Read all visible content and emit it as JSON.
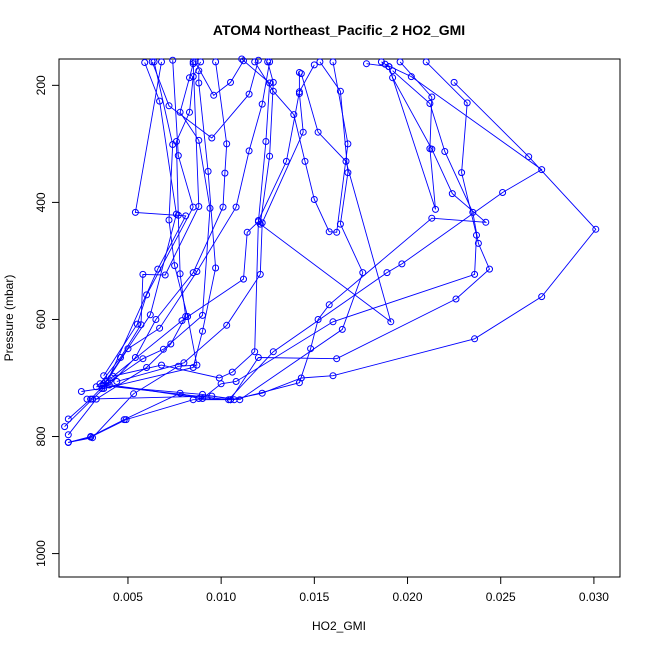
{
  "chart_data": {
    "type": "line",
    "title": "ATOM4 Northeast_Pacific_2 HO2_GMI",
    "xlabel": "HO2_GMI",
    "ylabel": "Pressure (mbar)",
    "xlim": [
      0.0013,
      0.0314
    ],
    "ylim": [
      1040,
      155
    ],
    "y_reversed": true,
    "x_ticks": [
      0.005,
      0.01,
      0.015,
      0.02,
      0.025,
      0.03
    ],
    "x_tick_labels": [
      "0.005",
      "0.010",
      "0.015",
      "0.020",
      "0.025",
      "0.030"
    ],
    "y_ticks": [
      200,
      400,
      600,
      800,
      1000
    ],
    "y_tick_labels": [
      "200",
      "400",
      "600",
      "800",
      "1000"
    ],
    "grid": false,
    "legend": "none",
    "color": "#0000ff",
    "marker": "open-circle",
    "series": [
      {
        "points": [
          [
            0.0018,
            810
          ],
          [
            0.003,
            800
          ],
          [
            0.0048,
            771
          ],
          [
            0.0078,
            726
          ],
          [
            0.0088,
            735
          ],
          [
            0.0105,
            737
          ],
          [
            0.0122,
            726
          ],
          [
            0.0143,
            700
          ],
          [
            0.016,
            696
          ],
          [
            0.0236,
            633
          ],
          [
            0.0272,
            561
          ],
          [
            0.0301,
            446
          ],
          [
            0.0265,
            322
          ],
          [
            0.0225,
            195
          ]
        ]
      },
      {
        "points": [
          [
            0.0018,
            810
          ],
          [
            0.003,
            801
          ],
          [
            0.0049,
            771
          ],
          [
            0.0085,
            737
          ],
          [
            0.0105,
            737
          ],
          [
            0.012,
            665
          ],
          [
            0.0162,
            667
          ],
          [
            0.0226,
            565
          ],
          [
            0.0244,
            514
          ],
          [
            0.0238,
            470
          ],
          [
            0.0235,
            417
          ],
          [
            0.022,
            313
          ],
          [
            0.0212,
            231
          ],
          [
            0.0192,
            175
          ]
        ]
      },
      {
        "points": [
          [
            0.0018,
            810
          ],
          [
            0.0031,
            802
          ],
          [
            0.0053,
            727
          ],
          [
            0.0077,
            680
          ],
          [
            0.0087,
            678
          ],
          [
            0.0082,
            595
          ],
          [
            0.0075,
            508
          ],
          [
            0.0072,
            430
          ],
          [
            0.0074,
            301
          ],
          [
            0.0064,
            160
          ]
        ]
      },
      {
        "points": [
          [
            0.0018,
            797
          ],
          [
            0.0033,
            736
          ],
          [
            0.006,
            682
          ],
          [
            0.0073,
            642
          ],
          [
            0.0081,
            595
          ],
          [
            0.0078,
            522
          ],
          [
            0.0077,
            422
          ],
          [
            0.0076,
            296
          ],
          [
            0.0083,
            246
          ],
          [
            0.0085,
            185
          ],
          [
            0.0089,
            160
          ]
        ]
      },
      {
        "points": [
          [
            0.0016,
            783
          ],
          [
            0.0031,
            736
          ],
          [
            0.0037,
            718
          ],
          [
            0.0085,
            682
          ],
          [
            0.009,
            620
          ],
          [
            0.0097,
            512
          ],
          [
            0.0093,
            347
          ],
          [
            0.0088,
            196
          ],
          [
            0.0088,
            175
          ]
        ]
      },
      {
        "points": [
          [
            0.0018,
            770
          ],
          [
            0.003,
            736
          ],
          [
            0.0037,
            713
          ],
          [
            0.0058,
            667
          ],
          [
            0.0069,
            651
          ],
          [
            0.009,
            593
          ],
          [
            0.0094,
            410
          ],
          [
            0.0088,
            294
          ],
          [
            0.0078,
            246
          ],
          [
            0.0083,
            187
          ],
          [
            0.0085,
            163
          ]
        ]
      },
      {
        "points": [
          [
            0.0025,
            723
          ],
          [
            0.0036,
            718
          ],
          [
            0.005,
            650
          ],
          [
            0.0067,
            615
          ],
          [
            0.0087,
            518
          ],
          [
            0.0108,
            408
          ],
          [
            0.0115,
            312
          ],
          [
            0.0122,
            232
          ],
          [
            0.0126,
            160
          ]
        ]
      },
      {
        "points": [
          [
            0.0033,
            715
          ],
          [
            0.004,
            712
          ],
          [
            0.0054,
            665
          ],
          [
            0.0065,
            600
          ],
          [
            0.0085,
            520
          ],
          [
            0.0101,
            408
          ],
          [
            0.0102,
            350
          ],
          [
            0.0103,
            300
          ],
          [
            0.0097,
            160
          ]
        ]
      },
      {
        "points": [
          [
            0.0035,
            710
          ],
          [
            0.0046,
            665
          ],
          [
            0.0057,
            609
          ],
          [
            0.0058,
            523
          ],
          [
            0.007,
            524
          ],
          [
            0.0088,
            407
          ],
          [
            0.0085,
            160
          ]
        ]
      },
      {
        "points": [
          [
            0.0037,
            696
          ],
          [
            0.0055,
            608
          ],
          [
            0.006,
            558
          ],
          [
            0.0085,
            408
          ],
          [
            0.0077,
            320
          ],
          [
            0.0074,
            157
          ]
        ]
      },
      {
        "points": [
          [
            0.0038,
            706
          ],
          [
            0.0062,
            592
          ],
          [
            0.0076,
            420
          ],
          [
            0.0067,
            227
          ],
          [
            0.0059,
            161
          ]
        ]
      },
      {
        "points": [
          [
            0.0039,
            705
          ],
          [
            0.0066,
            514
          ],
          [
            0.0081,
            423
          ],
          [
            0.0054,
            417
          ],
          [
            0.0068,
            160
          ]
        ]
      },
      {
        "points": [
          [
            0.0041,
            700
          ],
          [
            0.0079,
            602
          ],
          [
            0.0112,
            531
          ],
          [
            0.0114,
            451
          ],
          [
            0.012,
            433
          ],
          [
            0.0124,
            296
          ],
          [
            0.0126,
            196
          ],
          [
            0.0111,
            155
          ]
        ]
      },
      {
        "points": [
          [
            0.0042,
            697
          ],
          [
            0.0068,
            678
          ],
          [
            0.0099,
            700
          ],
          [
            0.0106,
            690
          ],
          [
            0.0118,
            655
          ],
          [
            0.012,
            431
          ],
          [
            0.0135,
            330
          ],
          [
            0.0142,
            211
          ],
          [
            0.015,
            165
          ]
        ]
      },
      {
        "points": [
          [
            0.0028,
            736
          ],
          [
            0.0095,
            731
          ],
          [
            0.011,
            737
          ],
          [
            0.0165,
            617
          ],
          [
            0.0176,
            520
          ],
          [
            0.0164,
            437
          ],
          [
            0.0168,
            349
          ],
          [
            0.0164,
            210
          ],
          [
            0.0153,
            160
          ]
        ]
      },
      {
        "points": [
          [
            0.0037,
            710
          ],
          [
            0.009,
            735
          ],
          [
            0.01,
            710
          ],
          [
            0.0108,
            706
          ],
          [
            0.016,
            604
          ],
          [
            0.0236,
            523
          ],
          [
            0.0237,
            456
          ],
          [
            0.0229,
            349
          ],
          [
            0.0232,
            230
          ],
          [
            0.021,
            160
          ]
        ]
      },
      {
        "points": [
          [
            0.0036,
            713
          ],
          [
            0.009,
            728
          ],
          [
            0.0107,
            737
          ],
          [
            0.0142,
            708
          ],
          [
            0.0148,
            650
          ],
          [
            0.0152,
            600
          ],
          [
            0.0158,
            575
          ],
          [
            0.0213,
            427
          ],
          [
            0.0242,
            434
          ],
          [
            0.0224,
            385
          ],
          [
            0.0213,
            309
          ],
          [
            0.0192,
            187
          ],
          [
            0.019,
            168
          ],
          [
            0.0178,
            163
          ]
        ]
      },
      {
        "points": [
          [
            0.0037,
            713
          ],
          [
            0.0104,
            737
          ],
          [
            0.0128,
            655
          ],
          [
            0.0189,
            520
          ],
          [
            0.0197,
            505
          ],
          [
            0.0251,
            383
          ],
          [
            0.0272,
            344
          ],
          [
            0.0202,
            185
          ],
          [
            0.0188,
            164
          ]
        ]
      },
      {
        "points": [
          [
            0.0044,
            706
          ],
          [
            0.008,
            674
          ],
          [
            0.0103,
            610
          ],
          [
            0.0121,
            523
          ],
          [
            0.0122,
            435
          ],
          [
            0.0144,
            280
          ],
          [
            0.0142,
            214
          ],
          [
            0.0142,
            178
          ]
        ]
      },
      {
        "points": [
          [
            0.0063,
            160
          ],
          [
            0.0072,
            235
          ],
          [
            0.0095,
            290
          ],
          [
            0.0115,
            215
          ],
          [
            0.012,
            157
          ]
        ]
      },
      {
        "points": [
          [
            0.0086,
            160
          ],
          [
            0.0096,
            217
          ],
          [
            0.0105,
            195
          ],
          [
            0.0112,
            158
          ]
        ]
      },
      {
        "points": [
          [
            0.0125,
            160
          ],
          [
            0.0128,
            195
          ],
          [
            0.0126,
            321
          ],
          [
            0.0121,
            437
          ],
          [
            0.0191,
            604
          ],
          [
            0.0167,
            330
          ],
          [
            0.0152,
            280
          ],
          [
            0.0143,
            180
          ]
        ]
      },
      {
        "points": [
          [
            0.016,
            160
          ],
          [
            0.0168,
            300
          ],
          [
            0.0162,
            451
          ],
          [
            0.0158,
            450
          ],
          [
            0.015,
            395
          ],
          [
            0.0145,
            330
          ],
          [
            0.0139,
            250
          ],
          [
            0.0128,
            210
          ],
          [
            0.0118,
            160
          ]
        ]
      },
      {
        "points": [
          [
            0.0186,
            160
          ],
          [
            0.019,
            168
          ],
          [
            0.0215,
            412
          ],
          [
            0.0212,
            308
          ],
          [
            0.0213,
            220
          ],
          [
            0.0196,
            160
          ]
        ]
      }
    ]
  }
}
